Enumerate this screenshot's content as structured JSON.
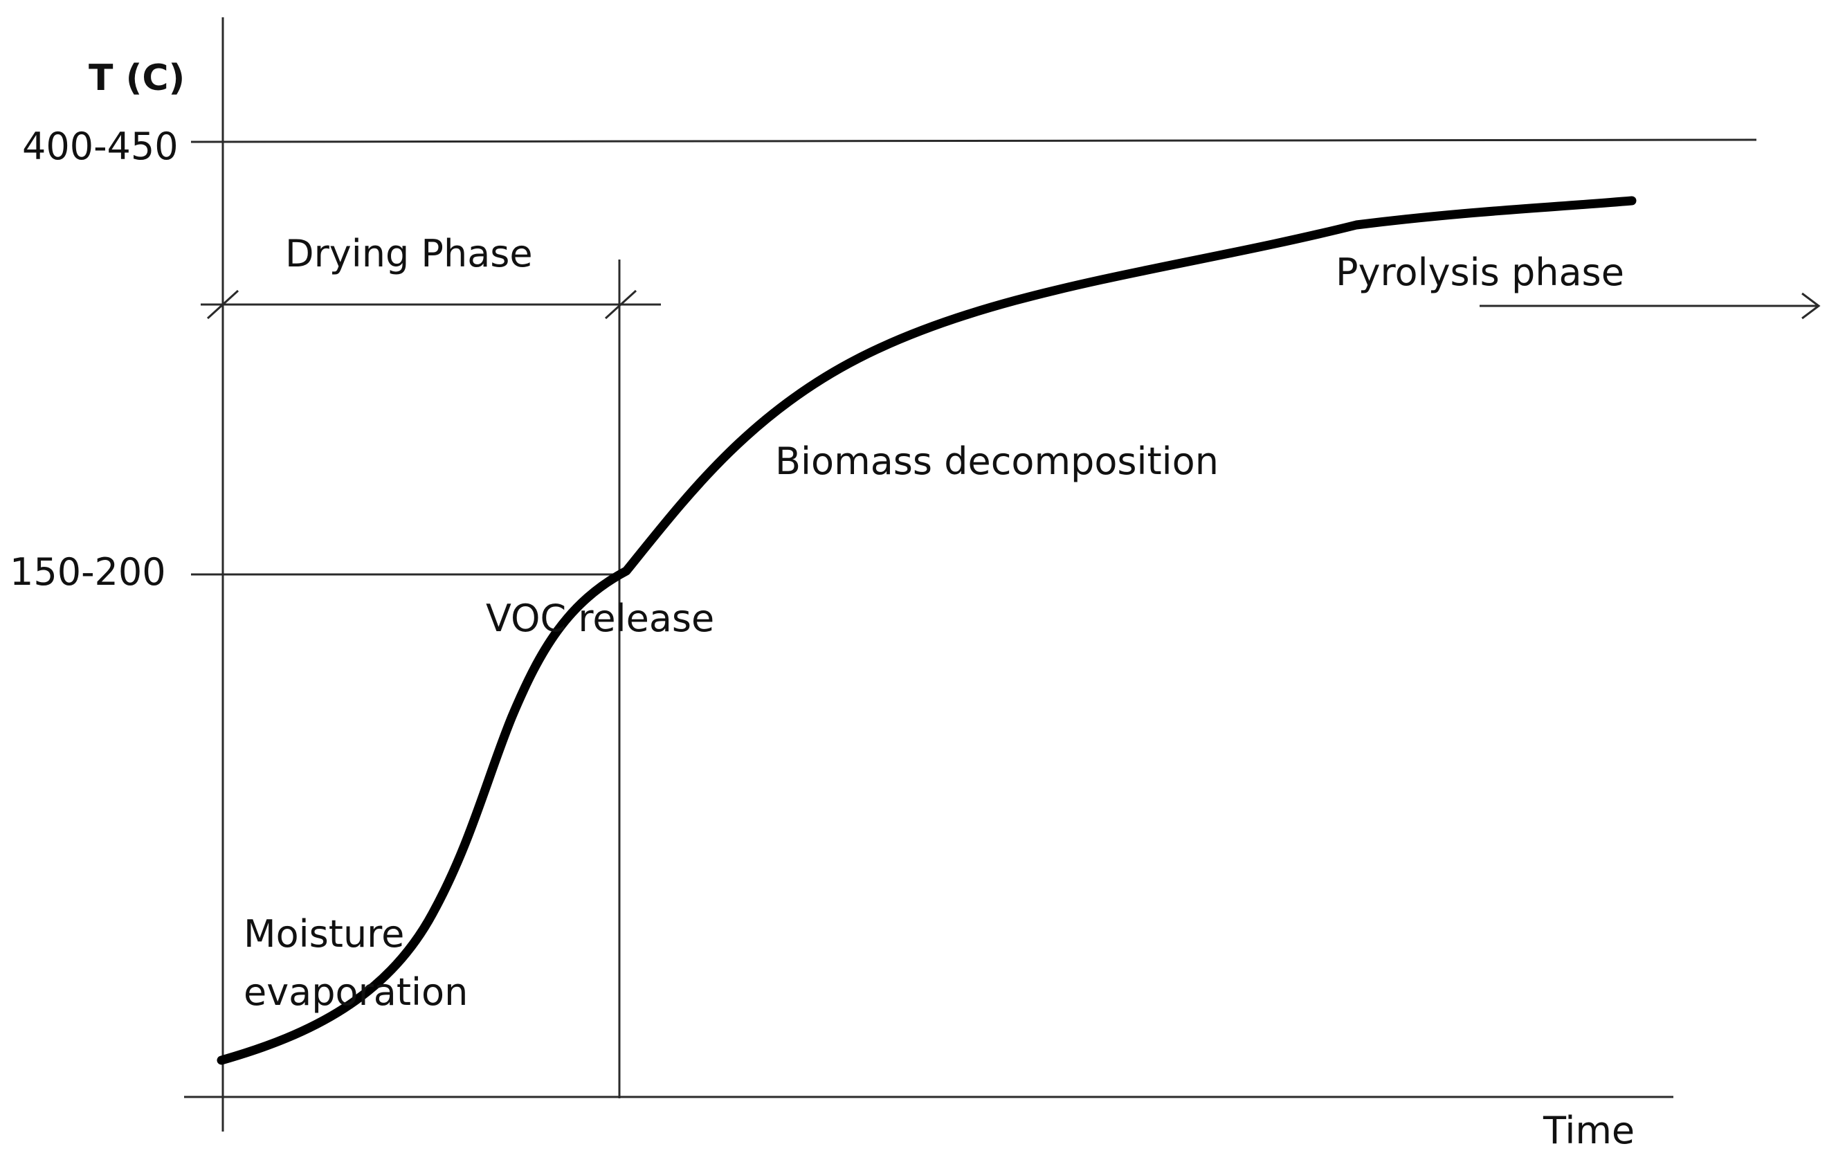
{
  "axes": {
    "y_label": "T (C)",
    "x_label": "Time",
    "y_ticks": [
      "400-450",
      "150-200"
    ]
  },
  "phases": {
    "drying": "Drying Phase",
    "pyrolysis": "Pyrolysis phase"
  },
  "annotations": {
    "moisture_line1": "Moisture",
    "moisture_line2": "evaporation",
    "voc": "VOC release",
    "biomass": "Biomass decomposition"
  },
  "colors": {
    "curve": "#000000",
    "lines": "#2a2a2a",
    "text": "#111111"
  }
}
